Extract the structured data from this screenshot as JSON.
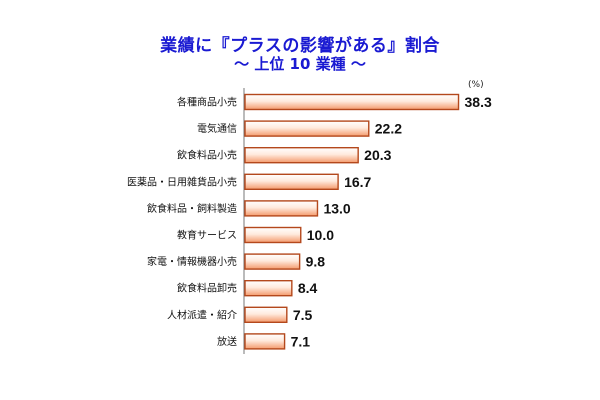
{
  "chart_data": {
    "type": "bar",
    "orientation": "horizontal",
    "title": "業績に『プラスの影響がある』割合",
    "subtitle": "～ 上位 10 業種 ～",
    "unit": "(%)",
    "categories": [
      "各種商品小売",
      "電気通信",
      "飲食料品小売",
      "医薬品・日用雑貨品小売",
      "飲食料品・飼料製造",
      "教育サービス",
      "家電・情報機器小売",
      "飲食料品卸売",
      "人材派遣・紹介",
      "放送"
    ],
    "values": [
      38.3,
      22.2,
      20.3,
      16.7,
      13.0,
      10.0,
      9.8,
      8.4,
      7.5,
      7.1
    ],
    "value_labels": [
      "38.3",
      "22.2",
      "20.3",
      "16.7",
      "13.0",
      "10.0",
      "9.8",
      "8.4",
      "7.5",
      "7.1"
    ],
    "xlim": [
      0,
      40
    ],
    "grid": false,
    "legend": "none",
    "colors": {
      "bar_edge": "#b4481c",
      "bar_light": "#ffeadd",
      "bar_mid": "#f49a6c",
      "title": "#1a1ad2"
    }
  }
}
